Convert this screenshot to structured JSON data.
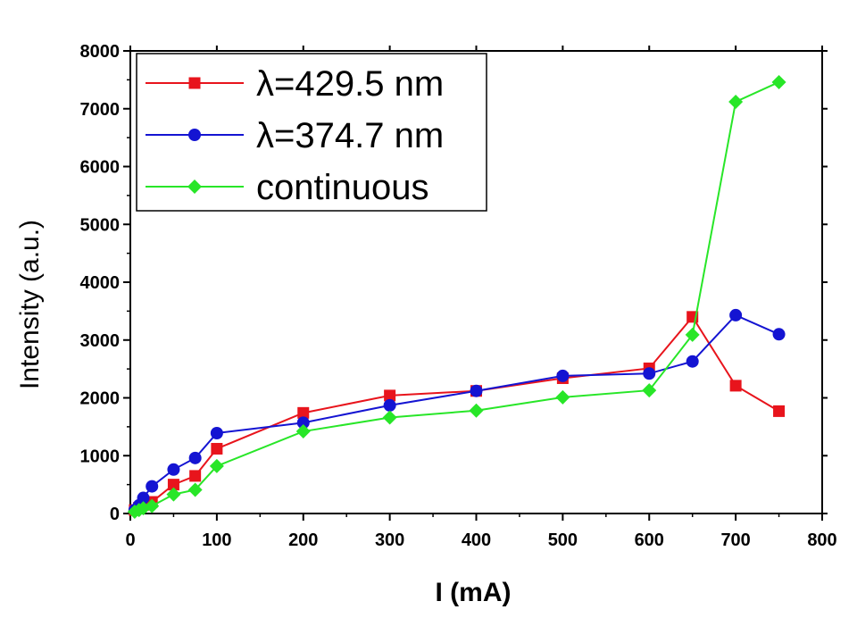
{
  "chart_data": {
    "type": "line",
    "xlabel": "I (mA)",
    "ylabel": "Intensity (a.u.)",
    "xlim": [
      0,
      800
    ],
    "ylim": [
      0,
      8000
    ],
    "xticks": [
      0,
      100,
      200,
      300,
      400,
      500,
      600,
      700,
      800
    ],
    "yticks": [
      0,
      1000,
      2000,
      3000,
      4000,
      5000,
      6000,
      7000,
      8000
    ],
    "grid": false,
    "legend_position": "top-left",
    "series": [
      {
        "name": "λ=429.5 nm",
        "color": "#e8141c",
        "marker": "square",
        "x": [
          5,
          10,
          15,
          25,
          50,
          75,
          100,
          200,
          300,
          400,
          500,
          600,
          650,
          700,
          750
        ],
        "y": [
          60,
          100,
          150,
          200,
          500,
          650,
          1120,
          1740,
          2040,
          2120,
          2340,
          2510,
          3400,
          2210,
          1770
        ]
      },
      {
        "name": "λ=374.7 nm",
        "color": "#1414d2",
        "marker": "circle",
        "x": [
          5,
          10,
          15,
          25,
          50,
          75,
          100,
          200,
          300,
          400,
          500,
          600,
          650,
          700,
          750
        ],
        "y": [
          60,
          140,
          270,
          470,
          760,
          960,
          1390,
          1570,
          1870,
          2120,
          2380,
          2420,
          2630,
          3430,
          3100
        ]
      },
      {
        "name": "continuous",
        "color": "#28e628",
        "marker": "diamond",
        "x": [
          5,
          10,
          15,
          25,
          50,
          75,
          100,
          200,
          300,
          400,
          500,
          600,
          650,
          700,
          750
        ],
        "y": [
          30,
          60,
          90,
          130,
          330,
          410,
          820,
          1420,
          1660,
          1780,
          2010,
          2130,
          3090,
          7120,
          7460
        ]
      }
    ]
  }
}
